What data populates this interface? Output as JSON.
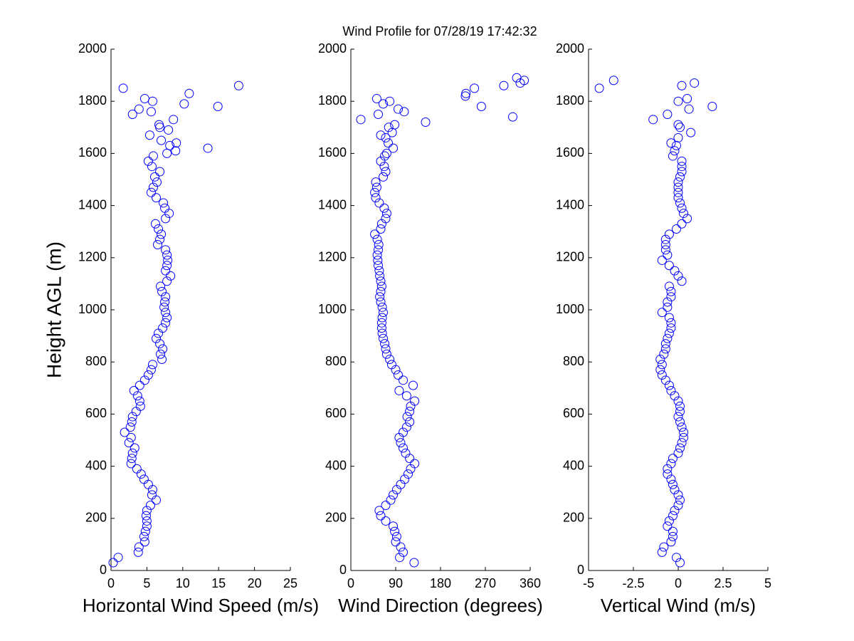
{
  "title": "Wind Profile for  07/28/19 17:42:32",
  "chart_data": [
    {
      "type": "scatter",
      "xlabel": "Horizontal Wind Speed (m/s)",
      "ylabel": "Height AGL (m)",
      "xlim": [
        0,
        25
      ],
      "xticks": [
        0,
        5,
        10,
        15,
        20,
        25
      ],
      "ylim": [
        0,
        2000
      ],
      "yticks": [
        0,
        200,
        400,
        600,
        800,
        1000,
        1200,
        1400,
        1600,
        1800,
        2000
      ],
      "series": [
        {
          "color": "#0000ff",
          "x": [
            0.3,
            1.0,
            3.8,
            3.9,
            4.7,
            4.6,
            4.8,
            5.0,
            5.0,
            4.9,
            5.0,
            5.5,
            6.3,
            5.7,
            5.8,
            5.2,
            4.6,
            4.2,
            3.6,
            2.8,
            2.9,
            3.0,
            3.3,
            2.5,
            2.8,
            1.9,
            2.7,
            2.9,
            3.0,
            3.5,
            4.1,
            4.0,
            3.7,
            3.2,
            4.0,
            4.7,
            5.2,
            5.6,
            5.8,
            7.1,
            6.9,
            7.2,
            6.8,
            6.3,
            6.6,
            7.2,
            7.6,
            7.8,
            7.6,
            7.4,
            7.5,
            7.6,
            7.1,
            6.9,
            7.8,
            8.3,
            7.6,
            7.8,
            7.9,
            7.8,
            7.6,
            6.5,
            6.8,
            7.0,
            6.6,
            6.2,
            7.6,
            8.1,
            7.5,
            7.3,
            6.3,
            5.6,
            5.9,
            6.4,
            6.1,
            6.8,
            5.7,
            5.2,
            5.9,
            7.8,
            13.5,
            9.0,
            8.2,
            9.1,
            7.0,
            5.4,
            8.0,
            6.8,
            6.7,
            8.7,
            3.0,
            5.6,
            3.9,
            14.9,
            10.2,
            5.8,
            4.7,
            10.9,
            1.7,
            17.8
          ],
          "y": [
            30,
            50,
            70,
            90,
            110,
            130,
            150,
            170,
            190,
            210,
            230,
            250,
            270,
            290,
            310,
            330,
            350,
            370,
            390,
            410,
            430,
            450,
            470,
            490,
            510,
            530,
            550,
            570,
            590,
            610,
            630,
            650,
            670,
            690,
            710,
            730,
            750,
            770,
            790,
            810,
            830,
            850,
            870,
            890,
            910,
            930,
            950,
            970,
            990,
            1010,
            1030,
            1050,
            1070,
            1090,
            1110,
            1130,
            1150,
            1170,
            1190,
            1210,
            1230,
            1250,
            1270,
            1290,
            1310,
            1330,
            1350,
            1370,
            1390,
            1410,
            1430,
            1450,
            1470,
            1490,
            1510,
            1530,
            1550,
            1570,
            1590,
            1600,
            1620,
            1610,
            1630,
            1640,
            1650,
            1670,
            1690,
            1700,
            1710,
            1730,
            1750,
            1760,
            1770,
            1780,
            1790,
            1800,
            1810,
            1830,
            1850,
            1860
          ]
        }
      ]
    },
    {
      "type": "scatter",
      "xlabel": "Wind Direction (degrees)",
      "xlim": [
        0,
        360
      ],
      "xticks": [
        0,
        90,
        180,
        270,
        360
      ],
      "ylim": [
        0,
        2000
      ],
      "yticks": [
        0,
        200,
        400,
        600,
        800,
        1000,
        1200,
        1400,
        1600,
        1800,
        2000
      ],
      "series": [
        {
          "color": "#0000ff",
          "x": [
            127,
            98,
            105,
            100,
            90,
            92,
            88,
            85,
            70,
            60,
            57,
            70,
            80,
            85,
            92,
            100,
            108,
            115,
            120,
            128,
            118,
            110,
            105,
            100,
            97,
            105,
            112,
            118,
            113,
            118,
            120,
            128,
            112,
            97,
            125,
            105,
            95,
            90,
            82,
            78,
            72,
            70,
            68,
            65,
            63,
            62,
            62,
            63,
            65,
            63,
            60,
            58,
            60,
            62,
            60,
            58,
            57,
            55,
            54,
            53,
            55,
            56,
            53,
            48,
            60,
            62,
            70,
            72,
            67,
            57,
            50,
            48,
            52,
            50,
            65,
            70,
            67,
            60,
            68,
            72,
            85,
            75,
            70,
            60,
            83,
            76,
            88,
            150,
            20,
            325,
            55,
            107,
            95,
            262,
            65,
            78,
            52,
            230,
            231,
            248,
            307,
            340,
            348,
            333
          ],
          "y": [
            30,
            50,
            70,
            90,
            110,
            130,
            150,
            170,
            190,
            210,
            230,
            250,
            270,
            290,
            310,
            330,
            350,
            370,
            390,
            410,
            430,
            450,
            470,
            490,
            510,
            530,
            550,
            570,
            590,
            610,
            630,
            650,
            670,
            690,
            710,
            730,
            750,
            770,
            790,
            810,
            830,
            850,
            870,
            890,
            910,
            930,
            950,
            970,
            990,
            1010,
            1030,
            1050,
            1070,
            1090,
            1110,
            1130,
            1150,
            1170,
            1190,
            1210,
            1230,
            1250,
            1270,
            1290,
            1310,
            1330,
            1350,
            1370,
            1390,
            1410,
            1430,
            1450,
            1470,
            1490,
            1510,
            1530,
            1550,
            1570,
            1590,
            1600,
            1620,
            1640,
            1660,
            1670,
            1680,
            1700,
            1710,
            1720,
            1730,
            1740,
            1750,
            1760,
            1770,
            1780,
            1790,
            1800,
            1810,
            1820,
            1830,
            1850,
            1860,
            1870,
            1880,
            1890
          ]
        }
      ]
    },
    {
      "type": "scatter",
      "xlabel": "Vertical Wind (m/s)",
      "xlim": [
        -5,
        5
      ],
      "xticks": [
        -5,
        -2.5,
        0,
        2.5,
        5
      ],
      "ylim": [
        0,
        2000
      ],
      "yticks": [
        0,
        200,
        400,
        600,
        800,
        1000,
        1200,
        1400,
        1600,
        1800,
        2000
      ],
      "series": [
        {
          "color": "#0000ff",
          "x": [
            0.1,
            -0.1,
            -0.9,
            -0.8,
            -0.4,
            -0.3,
            -0.3,
            -0.6,
            -0.5,
            -0.3,
            -0.2,
            0.0,
            0.1,
            0.0,
            -0.2,
            -0.3,
            -0.4,
            -0.6,
            -0.6,
            -0.4,
            -0.3,
            0.0,
            0.1,
            0.2,
            0.3,
            0.3,
            0.2,
            0.1,
            0.0,
            0.1,
            0.1,
            0.0,
            -0.2,
            -0.4,
            -0.5,
            -0.7,
            -0.9,
            -1.0,
            -0.9,
            -1.0,
            -0.8,
            -0.7,
            -0.7,
            -0.6,
            -0.5,
            -0.4,
            -0.4,
            -0.5,
            -0.9,
            -0.6,
            -0.6,
            -0.4,
            -0.4,
            -0.5,
            0.2,
            0.0,
            -0.2,
            -0.5,
            -0.9,
            -0.6,
            -0.7,
            -0.7,
            -0.7,
            -0.5,
            -0.1,
            0.2,
            0.5,
            0.3,
            0.2,
            0.1,
            0.0,
            0.0,
            0.0,
            0.0,
            0.1,
            0.2,
            0.2,
            0.2,
            -0.3,
            -0.2,
            -0.1,
            -0.4,
            0.0,
            0.7,
            0.1,
            0.0,
            -1.4,
            -0.6,
            0.6,
            1.9,
            0.0,
            0.5,
            -4.4,
            0.2,
            0.9,
            -3.6
          ],
          "y": [
            30,
            50,
            70,
            90,
            110,
            130,
            150,
            170,
            190,
            210,
            230,
            250,
            270,
            290,
            310,
            330,
            350,
            370,
            390,
            410,
            430,
            450,
            470,
            490,
            510,
            530,
            550,
            570,
            590,
            610,
            630,
            650,
            670,
            690,
            710,
            730,
            750,
            770,
            790,
            810,
            830,
            850,
            870,
            890,
            910,
            930,
            950,
            970,
            990,
            1010,
            1030,
            1050,
            1070,
            1090,
            1110,
            1130,
            1150,
            1170,
            1190,
            1210,
            1230,
            1250,
            1270,
            1290,
            1310,
            1330,
            1350,
            1370,
            1390,
            1410,
            1430,
            1450,
            1470,
            1490,
            1510,
            1530,
            1550,
            1570,
            1590,
            1610,
            1630,
            1640,
            1660,
            1680,
            1700,
            1710,
            1730,
            1750,
            1770,
            1780,
            1800,
            1810,
            1850,
            1860,
            1870,
            1880
          ]
        }
      ]
    }
  ]
}
